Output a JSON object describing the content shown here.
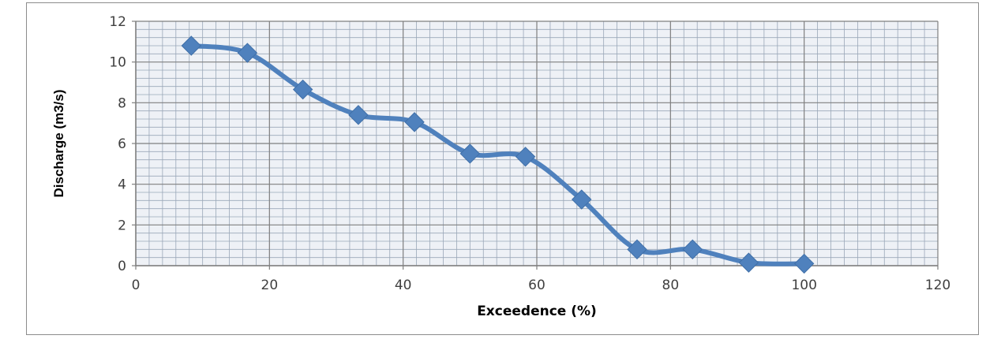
{
  "chart_data": {
    "type": "line",
    "title": "",
    "xlabel": "Exceedence (%)",
    "ylabel": "Discharge (m3/s)",
    "xlim": [
      0,
      120
    ],
    "ylim": [
      0,
      12
    ],
    "x_ticks": [
      "0",
      "20",
      "40",
      "60",
      "80",
      "100",
      "120"
    ],
    "y_ticks": [
      "0",
      "2",
      "4",
      "6",
      "8",
      "10",
      "12"
    ],
    "grid": true,
    "legend": "none",
    "smooth": true,
    "marker": "diamond",
    "series": [
      {
        "color": "#4f81bd",
        "x": [
          8.3,
          16.7,
          25,
          33.3,
          41.7,
          50,
          58.3,
          66.7,
          75,
          83.3,
          91.7,
          100
        ],
        "y": [
          10.8,
          10.45,
          8.65,
          7.4,
          7.05,
          5.5,
          5.35,
          3.25,
          0.8,
          0.8,
          0.15,
          0.1
        ]
      }
    ]
  }
}
